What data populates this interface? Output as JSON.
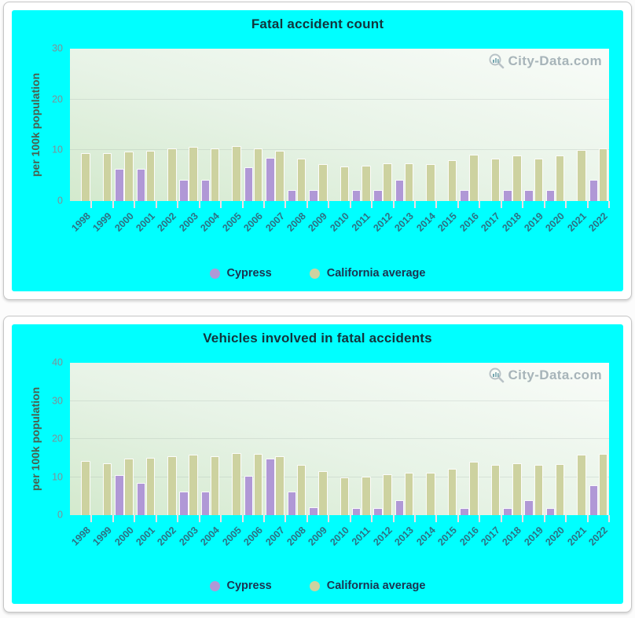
{
  "watermark": "City-Data.com",
  "colors": {
    "surface_cyan": "#00ffff",
    "cypress_bar": "#b098d6",
    "california_bar": "#cdd2a0",
    "title_text": "#12343c",
    "x_label_text": "#2d7183",
    "legend_text": "#1c3350"
  },
  "chart_data": [
    {
      "type": "bar",
      "title": "Fatal accident count",
      "ylabel": "per 100k population",
      "ylim": [
        0,
        30
      ],
      "yticks": [
        0,
        10,
        20,
        30
      ],
      "grid": "faint-horizontal",
      "legend_position": "bottom-center",
      "categories": [
        "1998",
        "1999",
        "2000",
        "2001",
        "2002",
        "2003",
        "2004",
        "2005",
        "2006",
        "2007",
        "2008",
        "2009",
        "2010",
        "2011",
        "2012",
        "2013",
        "2014",
        "2015",
        "2016",
        "2017",
        "2018",
        "2019",
        "2020",
        "2021",
        "2022"
      ],
      "series": [
        {
          "name": "Cypress",
          "color": "#b098d6",
          "values": [
            null,
            null,
            6.4,
            6.4,
            null,
            4.2,
            4.2,
            null,
            6.6,
            8.5,
            2.2,
            2.1,
            null,
            2.1,
            2.1,
            4.2,
            null,
            null,
            2.1,
            null,
            2.1,
            2.1,
            2.1,
            null,
            4.2
          ]
        },
        {
          "name": "California average",
          "color": "#cdd2a0",
          "values": [
            9.4,
            9.4,
            9.7,
            9.9,
            10.4,
            10.6,
            10.4,
            10.8,
            10.4,
            9.9,
            8.3,
            7.3,
            6.8,
            6.9,
            7.4,
            7.4,
            7.3,
            8.0,
            9.1,
            8.3,
            9.0,
            8.3,
            9.0,
            10.1,
            10.4
          ]
        }
      ]
    },
    {
      "type": "bar",
      "title": "Vehicles involved in fatal accidents",
      "ylabel": "per 100k population",
      "ylim": [
        0,
        40
      ],
      "yticks": [
        0,
        10,
        20,
        30,
        40
      ],
      "grid": "faint-horizontal",
      "legend_position": "bottom-center",
      "categories": [
        "1998",
        "1999",
        "2000",
        "2001",
        "2002",
        "2003",
        "2004",
        "2005",
        "2006",
        "2007",
        "2008",
        "2009",
        "2010",
        "2011",
        "2012",
        "2013",
        "2014",
        "2015",
        "2016",
        "2017",
        "2018",
        "2019",
        "2020",
        "2021",
        "2022"
      ],
      "series": [
        {
          "name": "Cypress",
          "color": "#b098d6",
          "values": [
            null,
            null,
            10.6,
            8.4,
            null,
            6.2,
            6.2,
            null,
            10.3,
            14.8,
            6.2,
            2.1,
            null,
            1.9,
            1.9,
            3.9,
            null,
            null,
            1.9,
            null,
            1.9,
            3.9,
            1.9,
            null,
            7.8
          ]
        },
        {
          "name": "California average",
          "color": "#cdd2a0",
          "values": [
            14.2,
            13.6,
            14.9,
            15.1,
            15.4,
            15.8,
            15.4,
            16.3,
            16.0,
            15.4,
            13.2,
            11.5,
            9.9,
            10.1,
            10.8,
            11.1,
            11.1,
            12.2,
            14.0,
            13.1,
            13.7,
            13.2,
            13.5,
            15.8,
            16.0
          ]
        }
      ]
    }
  ]
}
